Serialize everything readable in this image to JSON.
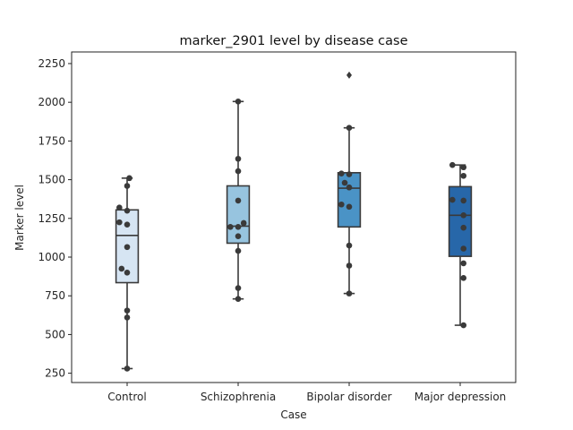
{
  "chart_data": {
    "type": "box",
    "title": "marker_2901 level by disease case",
    "xlabel": "Case",
    "ylabel": "Marker level",
    "ylim": [
      190,
      2325
    ],
    "yticks": [
      250,
      500,
      750,
      1000,
      1250,
      1500,
      1750,
      2000,
      2250
    ],
    "ytick_labels": [
      "250",
      "500",
      "750",
      "1000",
      "1250",
      "1500",
      "1750",
      "2000",
      "2250"
    ],
    "grid": false,
    "legend": "none",
    "categories": [
      "Control",
      "Schizophrenia",
      "Bipolar disorder",
      "Major depression"
    ],
    "colors": [
      "#d6e5f3",
      "#97c4df",
      "#4a93c6",
      "#2767a9"
    ],
    "line_color": "#3a3a3a",
    "boxes": [
      {
        "whisker_low": 280,
        "q1": 835,
        "median": 1140,
        "q3": 1305,
        "whisker_high": 1510,
        "outliers": []
      },
      {
        "whisker_low": 730,
        "q1": 1090,
        "median": 1200,
        "q3": 1460,
        "whisker_high": 2005,
        "outliers": []
      },
      {
        "whisker_low": 765,
        "q1": 1195,
        "median": 1445,
        "q3": 1545,
        "whisker_high": 1835,
        "outliers": [
          2175
        ]
      },
      {
        "whisker_low": 560,
        "q1": 1005,
        "median": 1270,
        "q3": 1455,
        "whisker_high": 1595,
        "outliers": []
      }
    ],
    "points": [
      [
        {
          "dx": 0.02,
          "y": 1510
        },
        {
          "dx": 0.0,
          "y": 1460
        },
        {
          "dx": -0.07,
          "y": 1320
        },
        {
          "dx": 0.0,
          "y": 1300
        },
        {
          "dx": -0.07,
          "y": 1225
        },
        {
          "dx": 0.0,
          "y": 1210
        },
        {
          "dx": 0.0,
          "y": 1065
        },
        {
          "dx": -0.05,
          "y": 925
        },
        {
          "dx": 0.0,
          "y": 900
        },
        {
          "dx": 0.0,
          "y": 655
        },
        {
          "dx": 0.0,
          "y": 610
        },
        {
          "dx": 0.0,
          "y": 280
        }
      ],
      [
        {
          "dx": 0.0,
          "y": 2005
        },
        {
          "dx": 0.0,
          "y": 1635
        },
        {
          "dx": 0.0,
          "y": 1555
        },
        {
          "dx": 0.0,
          "y": 1365
        },
        {
          "dx": 0.05,
          "y": 1220
        },
        {
          "dx": -0.07,
          "y": 1195
        },
        {
          "dx": 0.0,
          "y": 1195
        },
        {
          "dx": 0.0,
          "y": 1135
        },
        {
          "dx": 0.0,
          "y": 1040
        },
        {
          "dx": 0.0,
          "y": 800
        },
        {
          "dx": 0.0,
          "y": 730
        }
      ],
      [
        {
          "dx": 0.0,
          "y": 1835
        },
        {
          "dx": -0.07,
          "y": 1540
        },
        {
          "dx": 0.0,
          "y": 1535
        },
        {
          "dx": -0.04,
          "y": 1480
        },
        {
          "dx": 0.0,
          "y": 1450
        },
        {
          "dx": -0.07,
          "y": 1340
        },
        {
          "dx": 0.0,
          "y": 1325
        },
        {
          "dx": 0.0,
          "y": 1075
        },
        {
          "dx": 0.0,
          "y": 945
        },
        {
          "dx": 0.0,
          "y": 765
        }
      ],
      [
        {
          "dx": -0.07,
          "y": 1595
        },
        {
          "dx": 0.03,
          "y": 1580
        },
        {
          "dx": 0.03,
          "y": 1525
        },
        {
          "dx": -0.07,
          "y": 1370
        },
        {
          "dx": 0.03,
          "y": 1365
        },
        {
          "dx": 0.03,
          "y": 1270
        },
        {
          "dx": 0.03,
          "y": 1190
        },
        {
          "dx": 0.03,
          "y": 1055
        },
        {
          "dx": 0.03,
          "y": 960
        },
        {
          "dx": 0.03,
          "y": 865
        },
        {
          "dx": 0.03,
          "y": 560
        }
      ]
    ]
  }
}
